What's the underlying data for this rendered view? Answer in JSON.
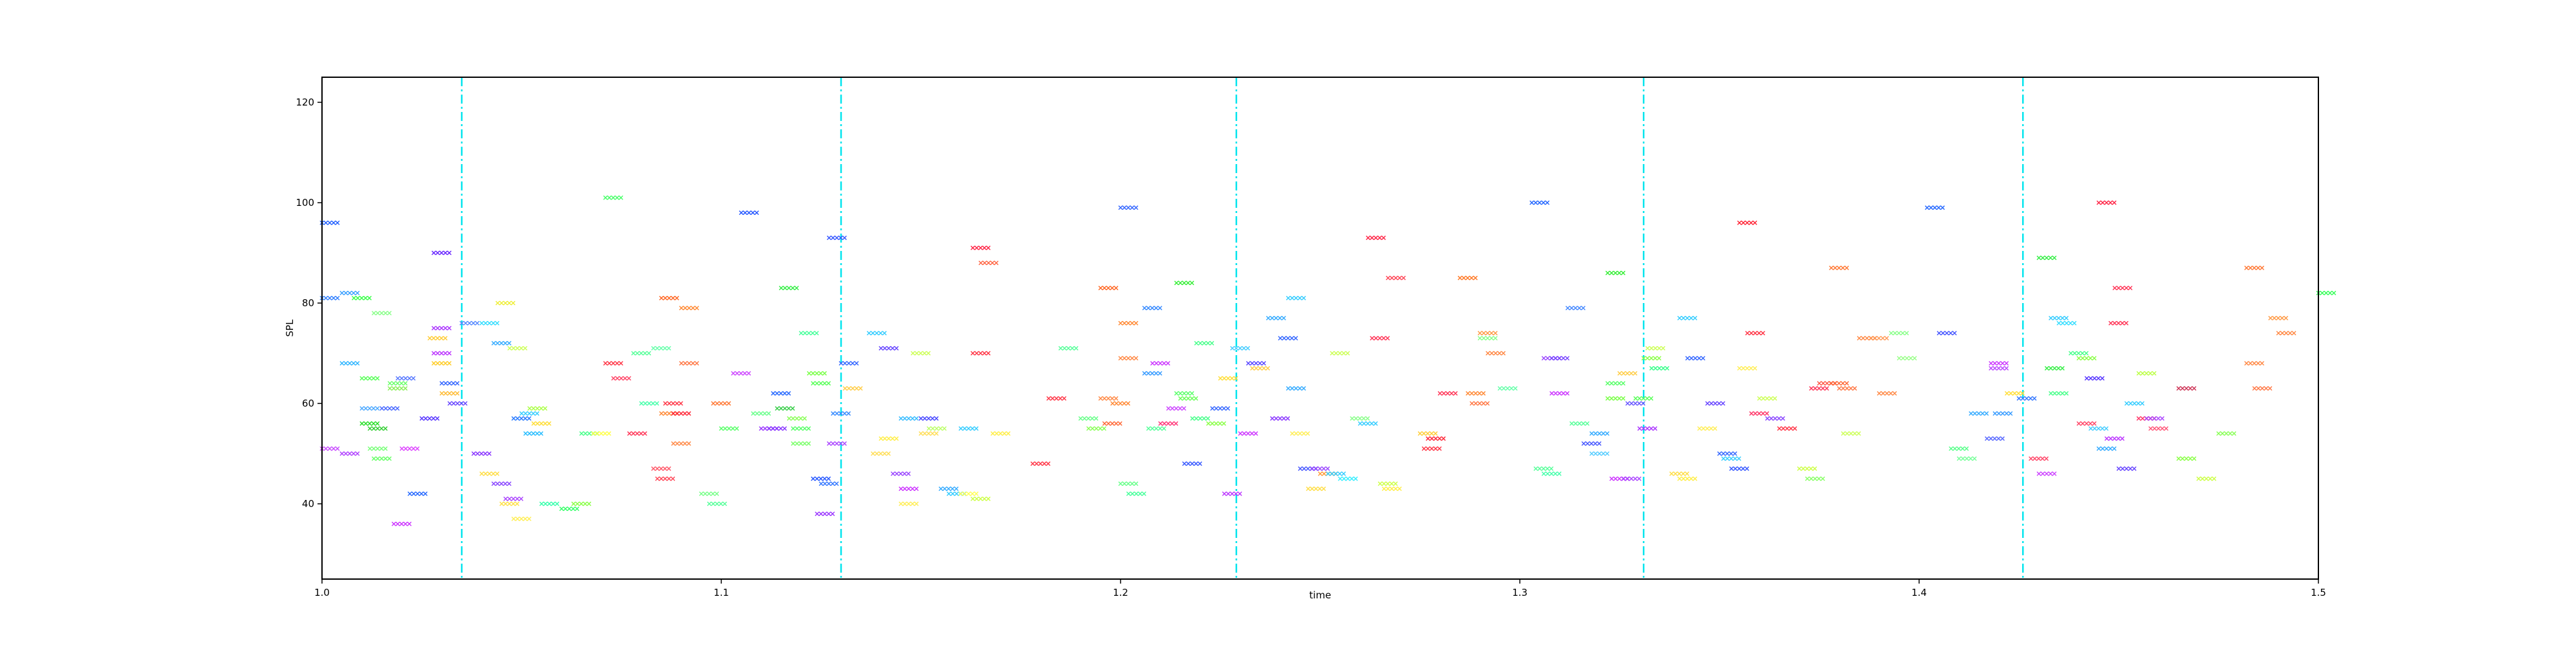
{
  "chart_data": {
    "type": "scatter",
    "title": "",
    "xlabel": "time",
    "ylabel": "SPL",
    "xlim": [
      1.0,
      1.5
    ],
    "ylim": [
      25,
      125
    ],
    "x_ticks": [
      1.0,
      1.1,
      1.2,
      1.3,
      1.4,
      1.5
    ],
    "x_tick_labels": [
      "1.0",
      "1.1",
      "1.2",
      "1.3",
      "1.4",
      "1.5"
    ],
    "y_ticks": [
      40,
      60,
      80,
      100,
      120
    ],
    "y_tick_labels": [
      "40",
      "60",
      "80",
      "100",
      "120"
    ],
    "grid": false,
    "marker": "x",
    "vlines": [
      1.035,
      1.13,
      1.229,
      1.331,
      1.426
    ],
    "vline_color": "#00e5ee",
    "points": [
      [
        1.0,
        96,
        "#1f5fff"
      ],
      [
        1.0,
        81,
        "#2f7fff"
      ],
      [
        1.0,
        51,
        "#c84bff"
      ],
      [
        1.005,
        68,
        "#2fb5ff"
      ],
      [
        1.005,
        82,
        "#3aa0ff"
      ],
      [
        1.005,
        50,
        "#b040ff"
      ],
      [
        1.008,
        81,
        "#33ff44"
      ],
      [
        1.01,
        65,
        "#55ff55"
      ],
      [
        1.01,
        59,
        "#4aa8ff"
      ],
      [
        1.01,
        56,
        "#22dd22"
      ],
      [
        1.012,
        55,
        "#2ecc2e"
      ],
      [
        1.012,
        51,
        "#77ff77"
      ],
      [
        1.013,
        78,
        "#88ff88"
      ],
      [
        1.013,
        49,
        "#66ff66"
      ],
      [
        1.015,
        59,
        "#4466ff"
      ],
      [
        1.017,
        64,
        "#66ff66"
      ],
      [
        1.017,
        63,
        "#88ee55"
      ],
      [
        1.018,
        36,
        "#cc33ff"
      ],
      [
        1.019,
        65,
        "#5577ff"
      ],
      [
        1.02,
        51,
        "#dd44ff"
      ],
      [
        1.022,
        42,
        "#2266ff"
      ],
      [
        1.025,
        57,
        "#5533ff"
      ],
      [
        1.027,
        73,
        "#ffcc33"
      ],
      [
        1.028,
        90,
        "#6622ff"
      ],
      [
        1.028,
        75,
        "#aa33ff"
      ],
      [
        1.028,
        70,
        "#bb33ff"
      ],
      [
        1.028,
        68,
        "#ffcc22"
      ],
      [
        1.03,
        64,
        "#3366ff"
      ],
      [
        1.03,
        62,
        "#ffbb33"
      ],
      [
        1.032,
        60,
        "#6644ff"
      ],
      [
        1.035,
        76,
        "#5588ff"
      ],
      [
        1.038,
        50,
        "#8833ff"
      ],
      [
        1.04,
        46,
        "#ffdd44"
      ],
      [
        1.04,
        76,
        "#33ddff"
      ],
      [
        1.043,
        72,
        "#33aaff"
      ],
      [
        1.043,
        44,
        "#8844ff"
      ],
      [
        1.044,
        80,
        "#eeee33"
      ],
      [
        1.045,
        40,
        "#ffe044"
      ],
      [
        1.046,
        41,
        "#aa44ff"
      ],
      [
        1.047,
        71,
        "#ccff55"
      ],
      [
        1.048,
        37,
        "#ffee55"
      ],
      [
        1.048,
        57,
        "#2277ff"
      ],
      [
        1.05,
        58,
        "#33ccff"
      ],
      [
        1.051,
        54,
        "#22bbff"
      ],
      [
        1.052,
        59,
        "#aaff44"
      ],
      [
        1.053,
        56,
        "#ffdd33"
      ],
      [
        1.055,
        40,
        "#33ffaa"
      ],
      [
        1.06,
        39,
        "#33ff66"
      ],
      [
        1.063,
        40,
        "#88ff44"
      ],
      [
        1.065,
        54,
        "#44ff88"
      ],
      [
        1.068,
        54,
        "#ffff44"
      ],
      [
        1.071,
        101,
        "#44ff66"
      ],
      [
        1.071,
        68,
        "#ff3344"
      ],
      [
        1.073,
        65,
        "#ff4466"
      ],
      [
        1.077,
        54,
        "#ff3355"
      ],
      [
        1.078,
        70,
        "#55ff99"
      ],
      [
        1.08,
        60,
        "#44ffaa"
      ],
      [
        1.083,
        47,
        "#ff5566"
      ],
      [
        1.083,
        71,
        "#66ffaa"
      ],
      [
        1.084,
        45,
        "#ff4455"
      ],
      [
        1.085,
        81,
        "#ff6622"
      ],
      [
        1.085,
        58,
        "#ff8833"
      ],
      [
        1.086,
        60,
        "#ff3344"
      ],
      [
        1.088,
        52,
        "#ff8844"
      ],
      [
        1.088,
        58,
        "#ff2233"
      ],
      [
        1.09,
        79,
        "#ff8833"
      ],
      [
        1.09,
        68,
        "#ff7744"
      ],
      [
        1.095,
        42,
        "#77ff88"
      ],
      [
        1.097,
        40,
        "#55ff99"
      ],
      [
        1.098,
        60,
        "#ff7733"
      ],
      [
        1.1,
        55,
        "#55ff66"
      ],
      [
        1.103,
        66,
        "#cc44ff"
      ],
      [
        1.105,
        98,
        "#2255ff"
      ],
      [
        1.108,
        58,
        "#66ff88"
      ],
      [
        1.11,
        55,
        "#9933ff"
      ],
      [
        1.112,
        55,
        "#8833ff"
      ],
      [
        1.113,
        62,
        "#2266ff"
      ],
      [
        1.114,
        59,
        "#33cc44"
      ],
      [
        1.115,
        83,
        "#33ee44"
      ],
      [
        1.117,
        57,
        "#88ff55"
      ],
      [
        1.118,
        55,
        "#55ff66"
      ],
      [
        1.118,
        52,
        "#77ff66"
      ],
      [
        1.12,
        74,
        "#44ff99"
      ],
      [
        1.122,
        66,
        "#77ff44"
      ],
      [
        1.123,
        64,
        "#55ff55"
      ],
      [
        1.123,
        45,
        "#2255ff"
      ],
      [
        1.124,
        38,
        "#9933ff"
      ],
      [
        1.125,
        44,
        "#3377ff"
      ],
      [
        1.127,
        93,
        "#3355ff"
      ],
      [
        1.127,
        52,
        "#aa44ff"
      ],
      [
        1.128,
        58,
        "#3388ff"
      ],
      [
        1.13,
        68,
        "#3366ff"
      ],
      [
        1.131,
        63,
        "#ffcc44"
      ],
      [
        1.137,
        74,
        "#33ccff"
      ],
      [
        1.138,
        50,
        "#ffdd55"
      ],
      [
        1.14,
        71,
        "#6644ff"
      ],
      [
        1.14,
        53,
        "#ffee44"
      ],
      [
        1.143,
        46,
        "#9944ff"
      ],
      [
        1.145,
        43,
        "#cc33ff"
      ],
      [
        1.145,
        40,
        "#ffee55"
      ],
      [
        1.145,
        57,
        "#33bbff"
      ],
      [
        1.148,
        70,
        "#ccff55"
      ],
      [
        1.15,
        54,
        "#ffdd55"
      ],
      [
        1.15,
        57,
        "#4444ff"
      ],
      [
        1.152,
        55,
        "#bbff66"
      ],
      [
        1.155,
        43,
        "#33aaff"
      ],
      [
        1.157,
        42,
        "#33ccff"
      ],
      [
        1.16,
        55,
        "#33ccff"
      ],
      [
        1.16,
        42,
        "#ffff55"
      ],
      [
        1.163,
        41,
        "#ccff44"
      ],
      [
        1.163,
        91,
        "#ff2244"
      ],
      [
        1.163,
        70,
        "#ff3344"
      ],
      [
        1.165,
        88,
        "#ff6644"
      ],
      [
        1.168,
        54,
        "#ffee44"
      ],
      [
        1.178,
        48,
        "#ff3344"
      ],
      [
        1.182,
        61,
        "#ff3344"
      ],
      [
        1.185,
        71,
        "#55ff99"
      ],
      [
        1.19,
        57,
        "#66ff88"
      ],
      [
        1.192,
        55,
        "#88ff55"
      ],
      [
        1.195,
        83,
        "#ff6622"
      ],
      [
        1.195,
        61,
        "#ff8844"
      ],
      [
        1.196,
        56,
        "#ff6633"
      ],
      [
        1.198,
        60,
        "#ff8833"
      ],
      [
        1.2,
        99,
        "#3366ff"
      ],
      [
        1.2,
        44,
        "#66ff88"
      ],
      [
        1.2,
        76,
        "#ff8833"
      ],
      [
        1.2,
        69,
        "#ff8844"
      ],
      [
        1.202,
        42,
        "#44ff99"
      ],
      [
        1.206,
        66,
        "#3399ff"
      ],
      [
        1.206,
        79,
        "#3388ff"
      ],
      [
        1.207,
        55,
        "#55ff99"
      ],
      [
        1.208,
        68,
        "#cc33ff"
      ],
      [
        1.21,
        56,
        "#ff3377"
      ],
      [
        1.212,
        59,
        "#cc44ff"
      ],
      [
        1.214,
        84,
        "#33ee33"
      ],
      [
        1.214,
        62,
        "#55ff66"
      ],
      [
        1.215,
        61,
        "#66ff55"
      ],
      [
        1.216,
        48,
        "#3355ff"
      ],
      [
        1.218,
        57,
        "#44ff88"
      ],
      [
        1.219,
        72,
        "#44ff88"
      ],
      [
        1.222,
        56,
        "#88ff44"
      ],
      [
        1.223,
        59,
        "#3366ff"
      ],
      [
        1.225,
        65,
        "#ffdd33"
      ],
      [
        1.226,
        42,
        "#bb33ff"
      ],
      [
        1.228,
        71,
        "#44ccff"
      ],
      [
        1.23,
        54,
        "#cc33ff"
      ],
      [
        1.232,
        68,
        "#5544ff"
      ],
      [
        1.233,
        67,
        "#ffcc44"
      ],
      [
        1.237,
        77,
        "#33aaff"
      ],
      [
        1.238,
        57,
        "#8833ff"
      ],
      [
        1.24,
        73,
        "#3366ff"
      ],
      [
        1.242,
        81,
        "#33ccff"
      ],
      [
        1.242,
        63,
        "#33aaff"
      ],
      [
        1.243,
        54,
        "#ffee55"
      ],
      [
        1.245,
        47,
        "#4455ff"
      ],
      [
        1.247,
        43,
        "#ffdd44"
      ],
      [
        1.248,
        47,
        "#9944ff"
      ],
      [
        1.25,
        46,
        "#ff9933"
      ],
      [
        1.252,
        46,
        "#33ccff"
      ],
      [
        1.253,
        70,
        "#ccff55"
      ],
      [
        1.255,
        45,
        "#33eeff"
      ],
      [
        1.258,
        57,
        "#88ff88"
      ],
      [
        1.26,
        56,
        "#33ccff"
      ],
      [
        1.262,
        93,
        "#ff2244"
      ],
      [
        1.263,
        73,
        "#ff3355"
      ],
      [
        1.265,
        44,
        "#ccff44"
      ],
      [
        1.266,
        43,
        "#ffee44"
      ],
      [
        1.267,
        85,
        "#ff4455"
      ],
      [
        1.275,
        54,
        "#ffcc33"
      ],
      [
        1.276,
        51,
        "#ff3344"
      ],
      [
        1.277,
        53,
        "#ff2233"
      ],
      [
        1.28,
        62,
        "#ff3355"
      ],
      [
        1.285,
        85,
        "#ff7722"
      ],
      [
        1.287,
        62,
        "#ff8833"
      ],
      [
        1.288,
        60,
        "#ff7744"
      ],
      [
        1.29,
        74,
        "#ff9944"
      ],
      [
        1.29,
        73,
        "#88ff88"
      ],
      [
        1.292,
        70,
        "#ff8844"
      ],
      [
        1.295,
        63,
        "#66ffaa"
      ],
      [
        1.303,
        100,
        "#2266ff"
      ],
      [
        1.304,
        47,
        "#55ff99"
      ],
      [
        1.306,
        46,
        "#44ffaa"
      ],
      [
        1.306,
        69,
        "#9944ff"
      ],
      [
        1.308,
        62,
        "#cc33ff"
      ],
      [
        1.308,
        69,
        "#7744ff"
      ],
      [
        1.312,
        79,
        "#4488ff"
      ],
      [
        1.313,
        56,
        "#55ff99"
      ],
      [
        1.316,
        52,
        "#4455ff"
      ],
      [
        1.318,
        54,
        "#33aaff"
      ],
      [
        1.318,
        50,
        "#55ccff"
      ],
      [
        1.322,
        86,
        "#33ee33"
      ],
      [
        1.322,
        64,
        "#55ff66"
      ],
      [
        1.322,
        61,
        "#77ff44"
      ],
      [
        1.323,
        45,
        "#cc33ff"
      ],
      [
        1.325,
        66,
        "#ffcc44"
      ],
      [
        1.326,
        45,
        "#aa44ff"
      ],
      [
        1.327,
        60,
        "#6655ff"
      ],
      [
        1.329,
        61,
        "#55ff55"
      ],
      [
        1.33,
        55,
        "#aa33ff"
      ],
      [
        1.331,
        69,
        "#88ff44"
      ],
      [
        1.332,
        71,
        "#ccff55"
      ],
      [
        1.333,
        67,
        "#33ff88"
      ],
      [
        1.338,
        46,
        "#ffdd44"
      ],
      [
        1.34,
        77,
        "#33ccff"
      ],
      [
        1.34,
        45,
        "#ffee44"
      ],
      [
        1.342,
        69,
        "#3366ff"
      ],
      [
        1.345,
        55,
        "#ffee55"
      ],
      [
        1.347,
        60,
        "#6644ff"
      ],
      [
        1.35,
        50,
        "#3366ff"
      ],
      [
        1.351,
        49,
        "#33ccff"
      ],
      [
        1.353,
        47,
        "#3355ff"
      ],
      [
        1.355,
        96,
        "#ff2233"
      ],
      [
        1.355,
        67,
        "#ffee55"
      ],
      [
        1.357,
        74,
        "#ff3344"
      ],
      [
        1.358,
        58,
        "#ff3366"
      ],
      [
        1.36,
        61,
        "#ccff55"
      ],
      [
        1.362,
        57,
        "#8844ff"
      ],
      [
        1.365,
        55,
        "#ff3344"
      ],
      [
        1.37,
        47,
        "#ccff44"
      ],
      [
        1.372,
        45,
        "#88ff66"
      ],
      [
        1.373,
        63,
        "#ff3355"
      ],
      [
        1.375,
        64,
        "#ff5544"
      ],
      [
        1.378,
        87,
        "#ff7733"
      ],
      [
        1.378,
        64,
        "#ff6633"
      ],
      [
        1.38,
        63,
        "#ff7744"
      ],
      [
        1.381,
        54,
        "#ccff55"
      ],
      [
        1.385,
        73,
        "#ff8844"
      ],
      [
        1.388,
        73,
        "#ff9955"
      ],
      [
        1.39,
        62,
        "#ff8844"
      ],
      [
        1.393,
        74,
        "#88ff88"
      ],
      [
        1.395,
        69,
        "#99ff88"
      ],
      [
        1.402,
        99,
        "#2266ff"
      ],
      [
        1.405,
        74,
        "#4455ff"
      ],
      [
        1.408,
        51,
        "#55ff88"
      ],
      [
        1.41,
        49,
        "#77ff99"
      ],
      [
        1.413,
        58,
        "#33aaff"
      ],
      [
        1.417,
        53,
        "#5566ff"
      ],
      [
        1.418,
        68,
        "#cc33ff"
      ],
      [
        1.418,
        67,
        "#bb44ff"
      ],
      [
        1.419,
        58,
        "#3399ff"
      ],
      [
        1.422,
        62,
        "#ffdd33"
      ],
      [
        1.425,
        61,
        "#3377ff"
      ],
      [
        1.428,
        49,
        "#ff4466"
      ],
      [
        1.43,
        46,
        "#cc44ff"
      ],
      [
        1.43,
        89,
        "#33ee44"
      ],
      [
        1.432,
        67,
        "#33ee44"
      ],
      [
        1.433,
        62,
        "#44ff88"
      ],
      [
        1.433,
        77,
        "#33ccff"
      ],
      [
        1.435,
        76,
        "#33ddff"
      ],
      [
        1.438,
        70,
        "#44ff88"
      ],
      [
        1.44,
        56,
        "#ff4466"
      ],
      [
        1.44,
        69,
        "#88ff44"
      ],
      [
        1.442,
        65,
        "#5533ff"
      ],
      [
        1.443,
        55,
        "#44ccff"
      ],
      [
        1.445,
        51,
        "#33aaff"
      ],
      [
        1.445,
        100,
        "#ff2244"
      ],
      [
        1.447,
        53,
        "#bb33ff"
      ],
      [
        1.448,
        76,
        "#ff3355"
      ],
      [
        1.449,
        83,
        "#ff3355"
      ],
      [
        1.45,
        47,
        "#6644ff"
      ],
      [
        1.452,
        60,
        "#33ccff"
      ],
      [
        1.455,
        66,
        "#bbff44"
      ],
      [
        1.455,
        57,
        "#ff3366"
      ],
      [
        1.457,
        57,
        "#aa44ff"
      ],
      [
        1.458,
        55,
        "#ff5577"
      ],
      [
        1.465,
        63,
        "#cc3355"
      ],
      [
        1.465,
        49,
        "#88ff44"
      ],
      [
        1.47,
        45,
        "#ccff44"
      ],
      [
        1.475,
        54,
        "#88ff55"
      ],
      [
        1.482,
        87,
        "#ff7733"
      ],
      [
        1.482,
        68,
        "#ff8844"
      ],
      [
        1.484,
        63,
        "#ff7744"
      ],
      [
        1.488,
        77,
        "#ff9944"
      ],
      [
        1.49,
        74,
        "#ff8844"
      ],
      [
        1.5,
        82,
        "#33ff55"
      ]
    ]
  }
}
